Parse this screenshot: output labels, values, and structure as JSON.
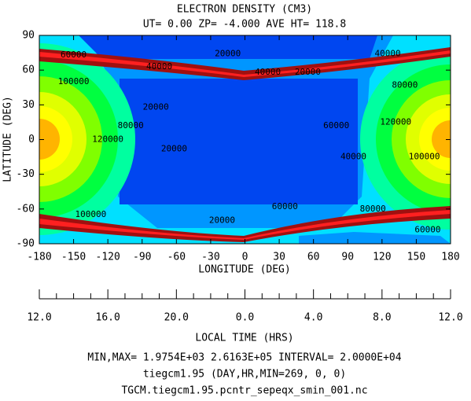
{
  "chart_data": {
    "type": "contour",
    "title": "ELECTRON DENSITY (CM3)",
    "subtitle": "UT= 0.00 ZP= -4.000 AVE HT= 118.8",
    "x_label": "LONGITUDE (DEG)",
    "y_label": "LATITUDE (DEG)",
    "xlim": [
      -180,
      180
    ],
    "ylim": [
      -90,
      90
    ],
    "xticks": [
      -180,
      -150,
      -120,
      -90,
      -60,
      -30,
      0,
      30,
      60,
      90,
      120,
      150,
      180
    ],
    "yticks": [
      90,
      60,
      30,
      0,
      -30,
      -60,
      -90
    ],
    "lt_label": "LOCAL TIME (HRS)",
    "lt_ticks": [
      {
        "value": 12,
        "label": "12.0"
      },
      {
        "value": 16,
        "label": "16.0"
      },
      {
        "value": 20,
        "label": "20.0"
      },
      {
        "value": 0,
        "label": "0.0"
      },
      {
        "value": 4,
        "label": "4.0"
      },
      {
        "value": 8,
        "label": "8.0"
      },
      {
        "value": 12,
        "label": "12.0"
      }
    ],
    "contour_labels": [
      {
        "value": 60000,
        "lon": -150,
        "lat": 73
      },
      {
        "value": 40000,
        "lon": -75,
        "lat": 63
      },
      {
        "value": 20000,
        "lon": -15,
        "lat": 74
      },
      {
        "value": 40000,
        "lon": 20,
        "lat": 58
      },
      {
        "value": 20000,
        "lon": 55,
        "lat": 58
      },
      {
        "value": 40000,
        "lon": 125,
        "lat": 74
      },
      {
        "value": 100000,
        "lon": -150,
        "lat": 50
      },
      {
        "value": 80000,
        "lon": 140,
        "lat": 47
      },
      {
        "value": 120000,
        "lon": -120,
        "lat": 0
      },
      {
        "value": 80000,
        "lon": -100,
        "lat": 12
      },
      {
        "value": 20000,
        "lon": -78,
        "lat": 28
      },
      {
        "value": 20000,
        "lon": -62,
        "lat": -8
      },
      {
        "value": 60000,
        "lon": 80,
        "lat": 12
      },
      {
        "value": 40000,
        "lon": 95,
        "lat": -15
      },
      {
        "value": 120000,
        "lon": 132,
        "lat": 15
      },
      {
        "value": 100000,
        "lon": 157,
        "lat": -15
      },
      {
        "value": 60000,
        "lon": 35,
        "lat": -58
      },
      {
        "value": 20000,
        "lon": -20,
        "lat": -70
      },
      {
        "value": 100000,
        "lon": -135,
        "lat": -65
      },
      {
        "value": 80000,
        "lon": 112,
        "lat": -60
      },
      {
        "value": 60000,
        "lon": 160,
        "lat": -78
      }
    ],
    "footer": [
      "MIN,MAX= 1.9754E+03 2.6163E+05 INTERVAL= 2.0000E+04",
      "tiegcm1.95 (DAY,HR,MIN=269, 0, 0)",
      "TGCM.tiegcm1.95.pcntr_sepeqx_smin_001.nc"
    ]
  }
}
